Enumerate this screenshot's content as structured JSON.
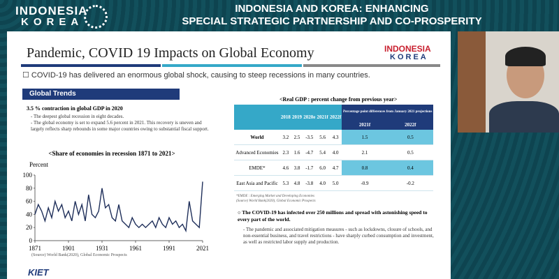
{
  "header": {
    "logo_top": "INDONESIA",
    "logo_bottom": "KOREA",
    "title_line1": "INDONESIA AND KOREA: ENHANCING",
    "title_line2": "SPECIAL STRATEGIC PARTNERSHIP AND CO-PROSPERITY"
  },
  "slide": {
    "title": "Pandemic, COVID 19 Impacts on Global Economy",
    "logo_top": "INDONESIA",
    "logo_bottom": "KOREA",
    "lead": "COVID-19 has delivered an enormous global shock, causing to steep recessions in many countries.",
    "section": "Global Trends",
    "point1": "3.5 % contraction in global GDP in 2020",
    "point1_details": [
      "- The deepest global recession in eight decades.",
      "- The global economy is set to expand 5.6 percent in 2021. This recovery is uneven and largely reflects sharp rebounds in some major countries owing to substantial fiscal support."
    ],
    "chart_source": "(Source) World Bank(2020), Global Economic Prospects",
    "table_note": "*EMDE : Emerging Market and Developing Economies",
    "table_source": "(Source) World Bank(2020), Global Economic Prospects",
    "point2": "The COVID-19 has infected over 250 millions and spread with astonishing speed to every part of the world.",
    "point2_detail": "- The pandemic and associated mitigation measures - such as lockdowns, closure of schools, and non-essential business, and travel restrictions - have sharply curbed consumption and investment, as well as restricted labor supply and production.",
    "footer_logo": "KIET"
  },
  "table": {
    "title": "<Real GDP : percent change from previous year>",
    "years": [
      "2018",
      "2019",
      "2020e",
      "2021f",
      "2022f"
    ],
    "diff_header": "Percentage point differences from January 2021 projections",
    "diff_years": [
      "2021f",
      "2022f"
    ],
    "rows": [
      {
        "label": "World",
        "values": [
          "3.2",
          "2.5",
          "-3.5",
          "5.6",
          "4.3"
        ],
        "diff": [
          "1.5",
          "0.5"
        ]
      },
      {
        "label": "Advanced Economies",
        "values": [
          "2.3",
          "1.6",
          "-4.7",
          "5.4",
          "4.0"
        ],
        "diff": [
          "2.1",
          "0.5"
        ]
      },
      {
        "label": "EMDE*",
        "values": [
          "4.6",
          "3.8",
          "-1.7",
          "6.0",
          "4.7"
        ],
        "diff": [
          "0.8",
          "0.4"
        ]
      },
      {
        "label": "East Asia and Pacific",
        "values": [
          "5.3",
          "4.8",
          "-3.8",
          "4.0",
          "5.0"
        ],
        "diff": [
          "-0.9",
          "-0.2"
        ]
      }
    ]
  },
  "chart_data": {
    "type": "line",
    "title": "<Share of economies in recession 1871 to 2021>",
    "y_label": "Percent",
    "color": "#1f2f5a",
    "x": [
      1871,
      1874,
      1877,
      1880,
      1883,
      1886,
      1889,
      1892,
      1895,
      1898,
      1901,
      1904,
      1907,
      1910,
      1913,
      1916,
      1919,
      1922,
      1925,
      1928,
      1931,
      1934,
      1937,
      1940,
      1943,
      1946,
      1949,
      1952,
      1955,
      1958,
      1961,
      1964,
      1967,
      1970,
      1973,
      1976,
      1979,
      1982,
      1985,
      1988,
      1991,
      1994,
      1997,
      2000,
      2003,
      2006,
      2009,
      2012,
      2015,
      2018,
      2021
    ],
    "values": [
      40,
      55,
      45,
      30,
      50,
      35,
      60,
      45,
      55,
      35,
      45,
      30,
      60,
      40,
      55,
      30,
      70,
      40,
      35,
      45,
      80,
      50,
      55,
      35,
      30,
      55,
      30,
      25,
      20,
      35,
      25,
      20,
      25,
      20,
      25,
      30,
      20,
      35,
      25,
      20,
      35,
      25,
      30,
      20,
      25,
      15,
      60,
      30,
      25,
      20,
      90
    ],
    "xlim": [
      1871,
      2021
    ],
    "xticks": [
      1871,
      1901,
      1931,
      1961,
      1991,
      2021
    ],
    "ylim": [
      0,
      100
    ],
    "yticks": [
      0,
      20,
      40,
      60,
      80,
      100
    ]
  }
}
